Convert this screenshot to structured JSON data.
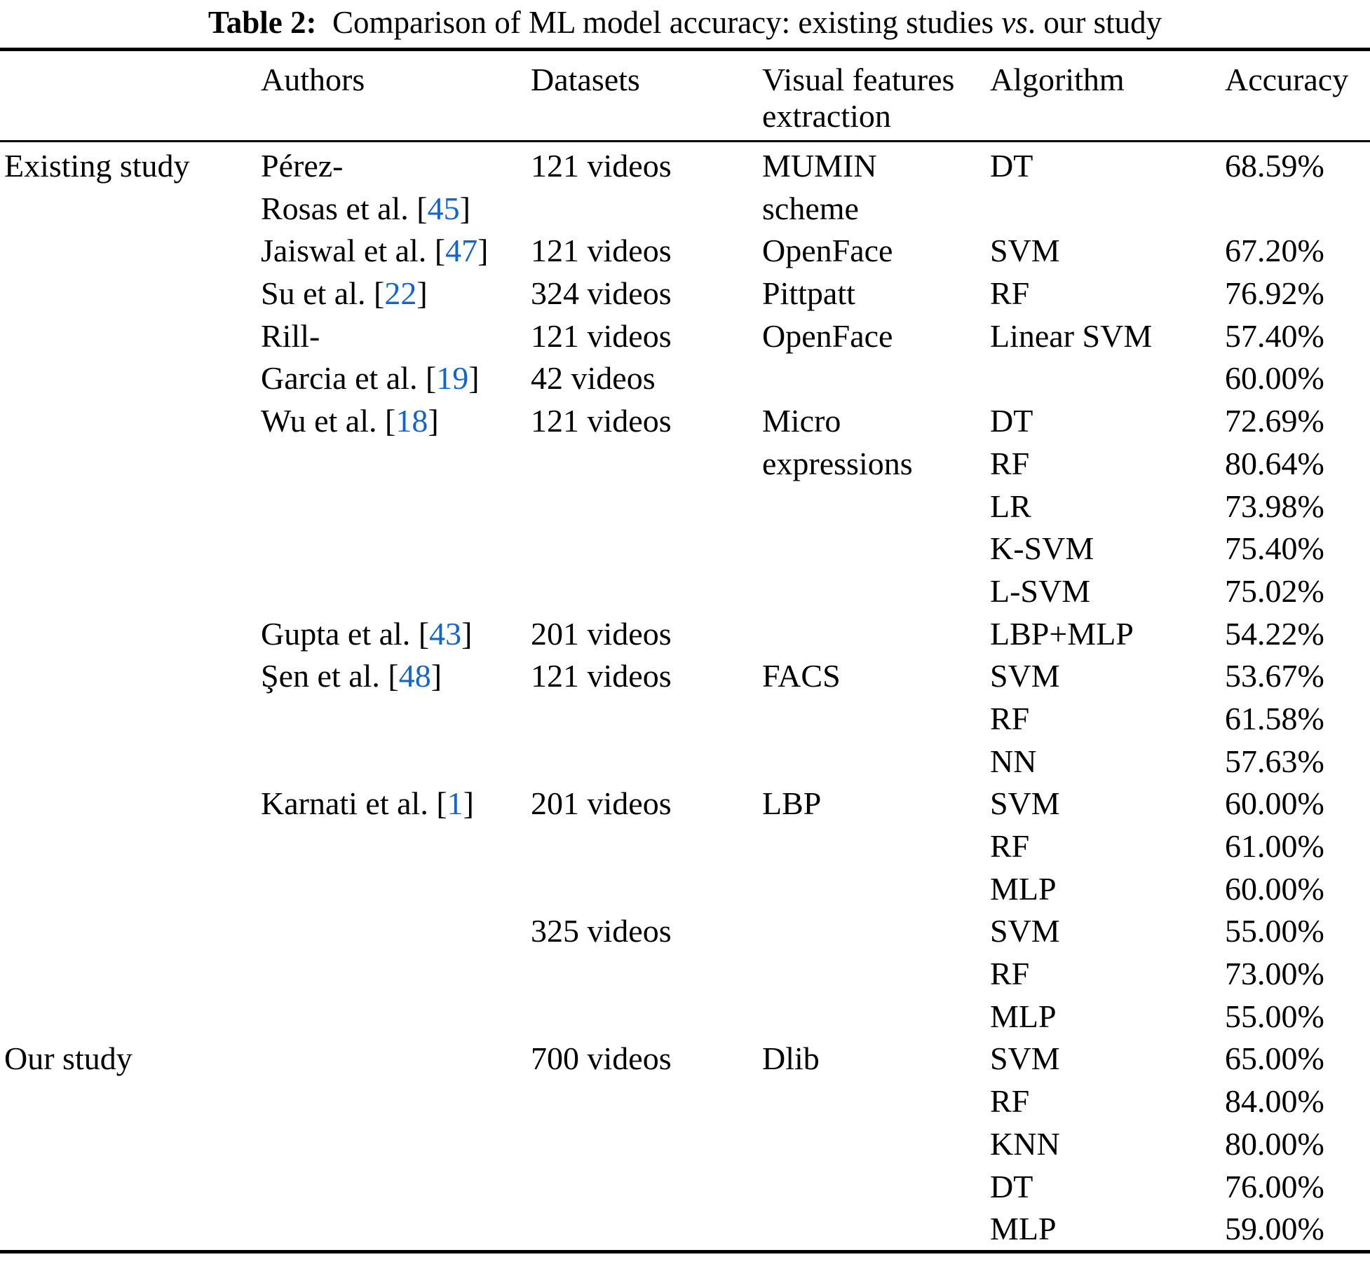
{
  "caption": {
    "label": "Table 2:",
    "before_emph": "  Comparison of ML model accuracy: existing studies ",
    "emph": "vs",
    "after_emph": ". our study"
  },
  "colors": {
    "text": "#000000",
    "citation": "#1165CB",
    "rule": "#000000",
    "background": "#ffffff"
  },
  "header": {
    "group": "",
    "authors": "Authors",
    "datasets": "Datasets",
    "visual_line1": "Visual features",
    "visual_line2": "extraction",
    "algorithm": "Algorithm",
    "accuracy": "Accuracy"
  },
  "table": {
    "columns": [
      {
        "key": "group"
      },
      {
        "key": "author"
      },
      {
        "key": "dataset"
      },
      {
        "key": "visual"
      },
      {
        "key": "algorithm"
      },
      {
        "key": "accuracy"
      }
    ],
    "rows": [
      {
        "group": "Existing study",
        "author": [
          {
            "t": "Pérez-"
          }
        ],
        "dataset": "121 videos",
        "visual": "MUMIN",
        "algorithm": "DT",
        "accuracy": "68.59%"
      },
      {
        "author": [
          {
            "t": "Rosas et al. "
          },
          {
            "c": "45"
          }
        ],
        "visual": "scheme"
      },
      {
        "author": [
          {
            "t": "Jaiswal et al. "
          },
          {
            "c": "47"
          }
        ],
        "dataset": "121 videos",
        "visual": "OpenFace",
        "algorithm": "SVM",
        "accuracy": "67.20%"
      },
      {
        "author": [
          {
            "t": "Su et al. "
          },
          {
            "c": "22"
          }
        ],
        "dataset": "324 videos",
        "visual": "Pittpatt",
        "algorithm": "RF",
        "accuracy": "76.92%"
      },
      {
        "author": [
          {
            "t": "Rill-"
          }
        ],
        "dataset": "121 videos",
        "visual": "OpenFace",
        "algorithm": "Linear SVM",
        "accuracy": "57.40%"
      },
      {
        "author": [
          {
            "t": "Garcia et al. "
          },
          {
            "c": "19"
          }
        ],
        "dataset": "42 videos",
        "accuracy": "60.00%"
      },
      {
        "author": [
          {
            "t": "Wu et al. "
          },
          {
            "c": "18"
          }
        ],
        "dataset": "121 videos",
        "visual": "Micro",
        "algorithm": "DT",
        "accuracy": "72.69%"
      },
      {
        "visual": "expressions",
        "algorithm": "RF",
        "accuracy": "80.64%"
      },
      {
        "algorithm": "LR",
        "accuracy": "73.98%"
      },
      {
        "algorithm": "K-SVM",
        "accuracy": "75.40%"
      },
      {
        "algorithm": "L-SVM",
        "accuracy": "75.02%"
      },
      {
        "author": [
          {
            "t": "Gupta et al. "
          },
          {
            "c": "43"
          }
        ],
        "dataset": "201 videos",
        "algorithm": "LBP+MLP",
        "accuracy": "54.22%"
      },
      {
        "author": [
          {
            "t": "Şen et al. "
          },
          {
            "c": "48"
          }
        ],
        "dataset": "121 videos",
        "visual": "FACS",
        "algorithm": "SVM",
        "accuracy": "53.67%"
      },
      {
        "algorithm": "RF",
        "accuracy": "61.58%"
      },
      {
        "algorithm": "NN",
        "accuracy": "57.63%"
      },
      {
        "author": [
          {
            "t": "Karnati et al. "
          },
          {
            "c": "1"
          }
        ],
        "dataset": "201 videos",
        "visual": "LBP",
        "algorithm": "SVM",
        "accuracy": "60.00%"
      },
      {
        "algorithm": "RF",
        "accuracy": "61.00%"
      },
      {
        "algorithm": "MLP",
        "accuracy": "60.00%"
      },
      {
        "dataset": "325 videos",
        "algorithm": "SVM",
        "accuracy": "55.00%"
      },
      {
        "algorithm": "RF",
        "accuracy": "73.00%"
      },
      {
        "algorithm": "MLP",
        "accuracy": "55.00%"
      },
      {
        "group": "Our study",
        "dataset": "700 videos",
        "visual": "Dlib",
        "algorithm": "SVM",
        "accuracy": "65.00%"
      },
      {
        "algorithm": "RF",
        "accuracy": "84.00%"
      },
      {
        "algorithm": "KNN",
        "accuracy": "80.00%"
      },
      {
        "algorithm": "DT",
        "accuracy": "76.00%"
      },
      {
        "algorithm": "MLP",
        "accuracy": "59.00%"
      }
    ]
  }
}
